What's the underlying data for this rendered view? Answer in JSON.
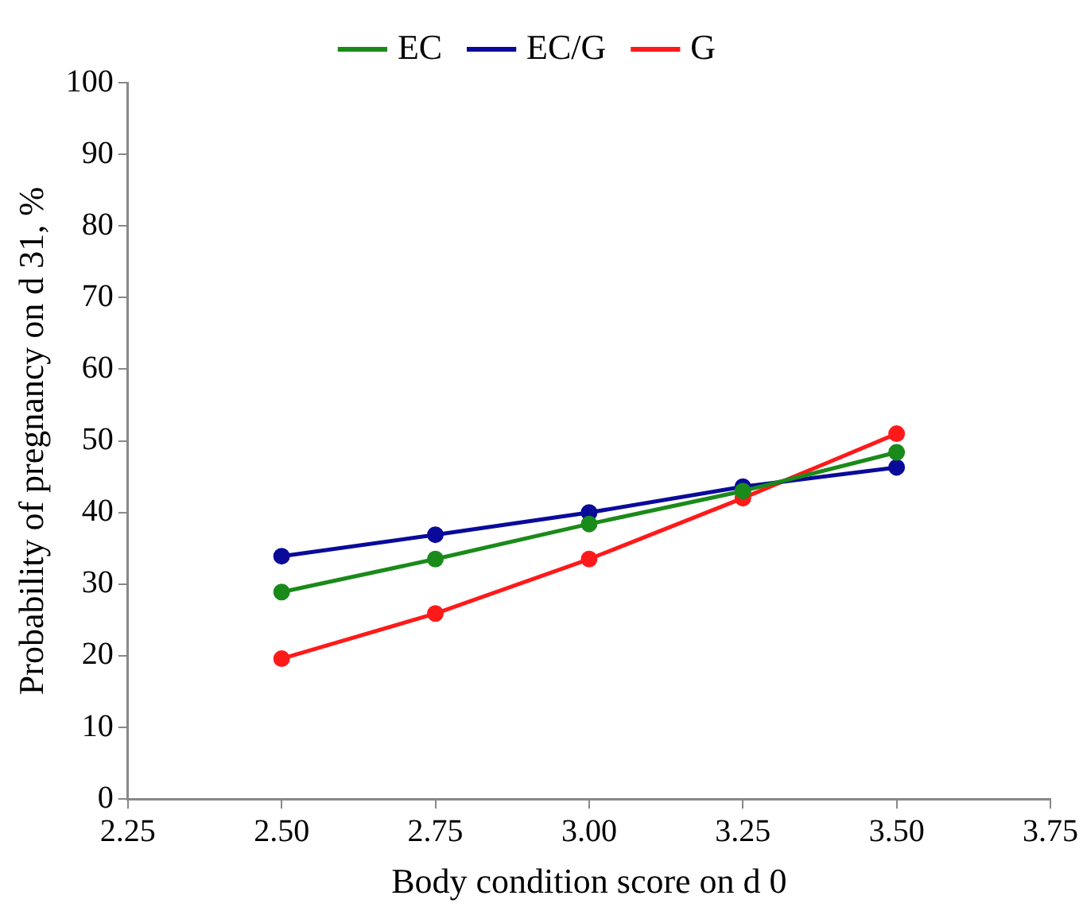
{
  "chart_data": {
    "type": "line",
    "xlabel": "Body condition score on d 0",
    "ylabel": "Probability of pregnancy on d 31, %",
    "x": [
      2.5,
      2.75,
      3.0,
      3.25,
      3.5
    ],
    "series": [
      {
        "name": "EC",
        "color": "#1a8a1a",
        "values": [
          28.9,
          33.5,
          38.4,
          43.0,
          48.4
        ]
      },
      {
        "name": "EC/G",
        "color": "#0a0a9a",
        "values": [
          33.9,
          36.9,
          40.0,
          43.6,
          46.3
        ]
      },
      {
        "name": "G",
        "color": "#ff1a1a",
        "values": [
          19.6,
          25.9,
          33.5,
          42.0,
          51.0
        ]
      }
    ],
    "xlim": [
      2.25,
      3.75
    ],
    "xticks": [
      {
        "value": 2.25,
        "label": "2.25"
      },
      {
        "value": 2.5,
        "label": "2.50"
      },
      {
        "value": 2.75,
        "label": "2.75"
      },
      {
        "value": 3,
        "label": "3.00"
      },
      {
        "value": 3.25,
        "label": "3.25"
      },
      {
        "value": 3.5,
        "label": "3.50"
      },
      {
        "value": 3.75,
        "label": "3.75"
      }
    ],
    "ylim": [
      0,
      100
    ],
    "yticks": [
      0,
      10,
      20,
      30,
      40,
      50,
      60,
      70,
      80,
      90,
      100
    ],
    "grid": false,
    "legend": "top",
    "marker": "circle",
    "line_style": "solid"
  }
}
